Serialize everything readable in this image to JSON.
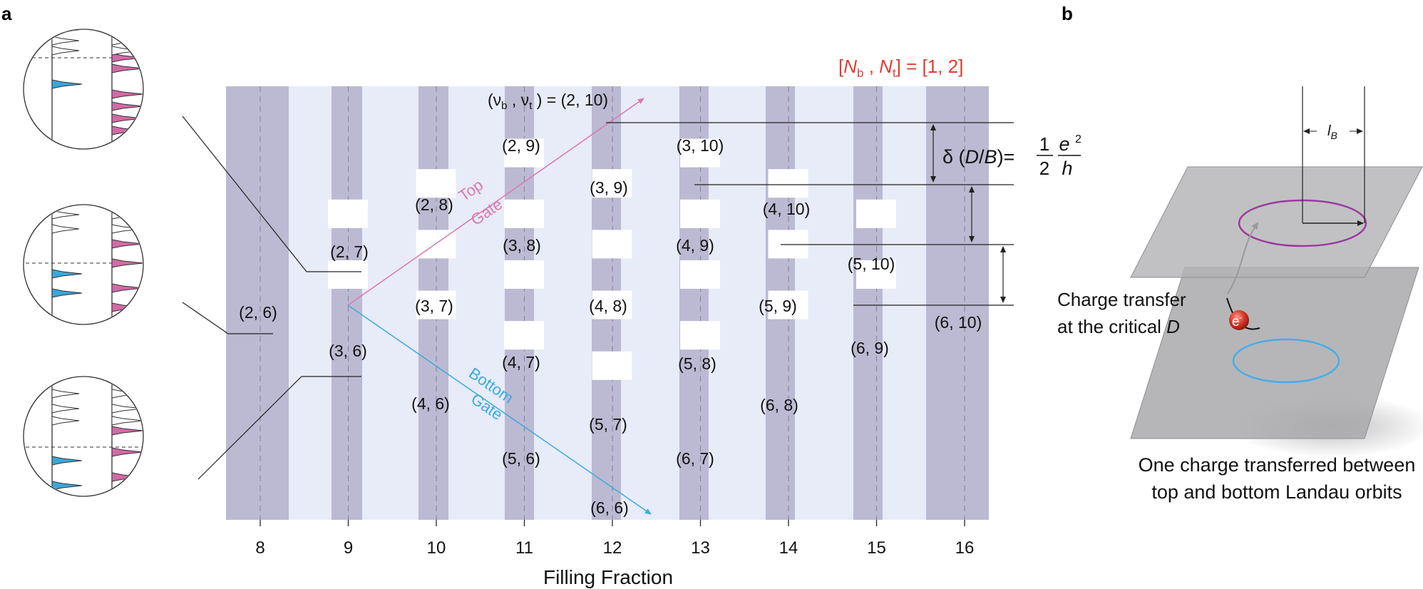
{
  "panel_labels": {
    "a": "a",
    "b": "b"
  },
  "bracket_label": {
    "open": "[",
    "Nb_N": "N",
    "Nb_sub": "b",
    "sep": " , ",
    "Nt_N": "N",
    "Nt_sub": "t",
    "close": "] = [1, 2]",
    "color": "#e03c31"
  },
  "nu_header": {
    "prefix": "(ν",
    "b_sub": "b",
    "mid": " , ν",
    "t_sub": "t",
    "suffix": " ) = (2, 10)"
  },
  "x_axis": {
    "title": "Filling Fraction",
    "ticks": [
      "8",
      "9",
      "10",
      "11",
      "12",
      "13",
      "14",
      "15",
      "16"
    ]
  },
  "points": [
    {
      "label": "(2, 6)"
    },
    {
      "label": "(2, 7)"
    },
    {
      "label": "(3, 6)"
    },
    {
      "label": "(2, 8)"
    },
    {
      "label": "(3, 7)"
    },
    {
      "label": "(4, 6)"
    },
    {
      "label": "(2, 9)"
    },
    {
      "label": "(3, 8)"
    },
    {
      "label": "(4, 7)"
    },
    {
      "label": "(5, 6)"
    },
    {
      "label": "(3, 9)"
    },
    {
      "label": "(4, 8)"
    },
    {
      "label": "(5, 7)"
    },
    {
      "label": "(6, 6)"
    },
    {
      "label": "(3, 10)"
    },
    {
      "label": "(4, 9)"
    },
    {
      "label": "(5, 8)"
    },
    {
      "label": "(6, 7)"
    },
    {
      "label": "(4, 10)"
    },
    {
      "label": "(5, 9)"
    },
    {
      "label": "(6, 8)"
    },
    {
      "label": "(5, 10)"
    },
    {
      "label": "(6, 9)"
    },
    {
      "label": "(6, 10)"
    }
  ],
  "gate_labels": {
    "top_line1": "Top",
    "top_line2": "Gate",
    "bottom_line1": "Bottom",
    "bottom_line2": "Gate"
  },
  "delta_formula": {
    "left": "δ (",
    "D": "D",
    "slash": "/",
    "B": "B",
    "right": ")=",
    "num": "1",
    "den": "2",
    "e": "e",
    "sq": "2",
    "h": "h"
  },
  "panel_b": {
    "lB": "l",
    "lB_sub": "B",
    "charge_transfer_line1": "Charge transfer",
    "charge_transfer_line2": "at the critical ",
    "charge_transfer_D": "D",
    "electron": "e",
    "electron_sup": "-",
    "caption_line1": "One charge transferred between",
    "caption_line2": "top and bottom Landau orbits"
  },
  "colors": {
    "dark_band": "#bcbad2",
    "light_band": "#e8ebf8",
    "top_gate": "#d87ab0",
    "bottom_gate": "#38ace0",
    "magenta_peak": "#d36aa8",
    "blue_peak": "#3aa7db",
    "orbit_top": "#9b3a9d",
    "orbit_bottom": "#45aee6",
    "plane": "#a9a9ad"
  }
}
